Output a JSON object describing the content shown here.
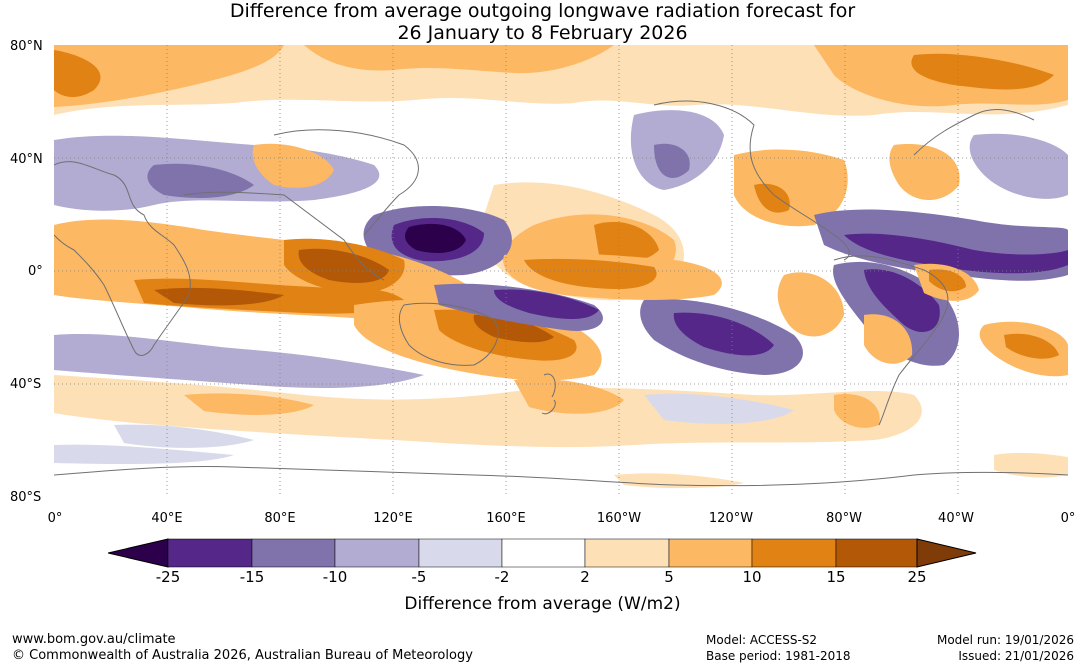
{
  "title": {
    "line1": "Difference from average outgoing longwave radiation forecast for",
    "line2": "26 January to 8 February 2026"
  },
  "map": {
    "lat_labels": [
      "80°N",
      "40°N",
      "0°",
      "40°S",
      "80°S"
    ],
    "lon_labels": [
      "0°",
      "40°E",
      "80°E",
      "120°E",
      "160°E",
      "160°W",
      "120°W",
      "80°W",
      "40°W",
      "0°"
    ]
  },
  "colorbar": {
    "title": "Difference from average (W/m2)",
    "ticks": [
      "-25",
      "-15",
      "-10",
      "-5",
      "-2",
      "2",
      "5",
      "10",
      "15",
      "25"
    ],
    "colors": [
      "#2d004b",
      "#542788",
      "#8073ac",
      "#b2abd2",
      "#d8daeb",
      "#ffffff",
      "#fee0b6",
      "#fdb863",
      "#e08214",
      "#b35806",
      "#7f3b08"
    ]
  },
  "footer": {
    "website": "www.bom.gov.au/climate",
    "copyright": "© Commonwealth of Australia 2026, Australian Bureau of Meteorology",
    "model": "Model: ACCESS-S2",
    "base_period": "Base period: 1981-2018",
    "model_run": "Model run: 19/01/2026",
    "issued": "Issued: 21/01/2026"
  }
}
